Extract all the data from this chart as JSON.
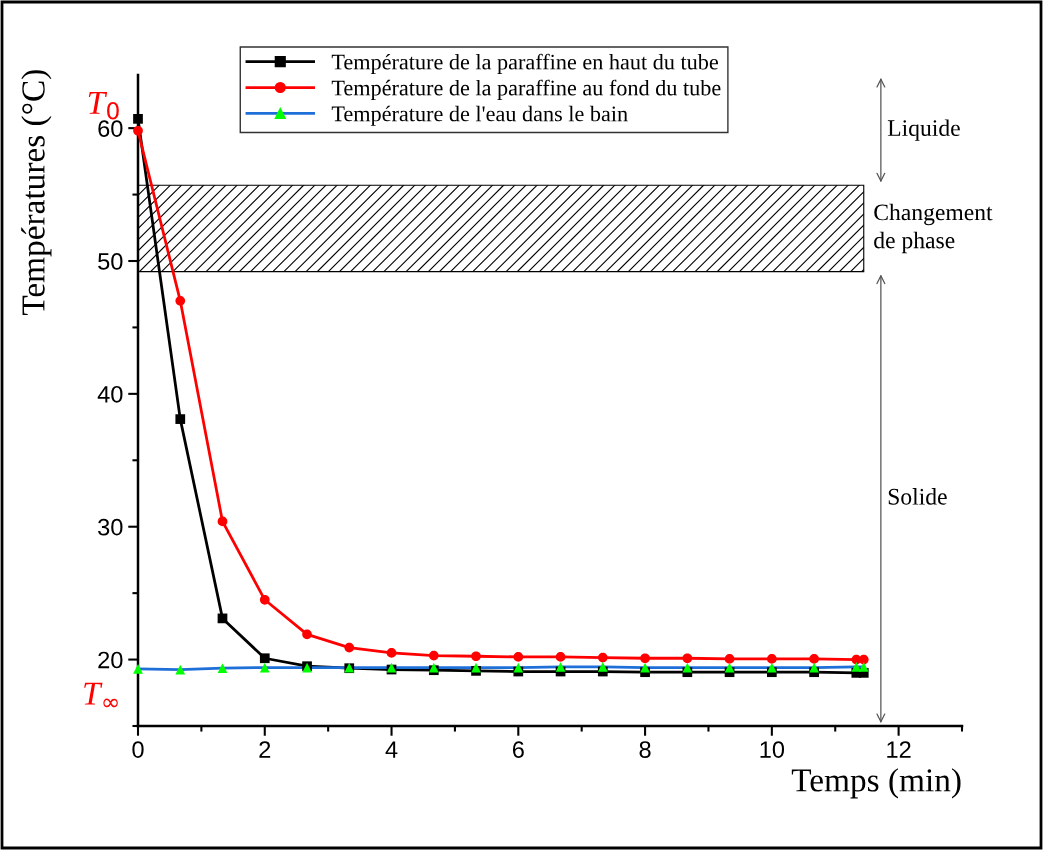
{
  "chart_data": {
    "type": "line",
    "xlabel": "Temps (min)",
    "ylabel": "Températures (°C)",
    "xlim": [
      0,
      13
    ],
    "xticks": [
      0,
      2,
      4,
      6,
      8,
      10,
      12
    ],
    "ylim": [
      15,
      64
    ],
    "yticks": [
      20,
      30,
      40,
      50,
      60
    ],
    "grid": false,
    "legend": "top",
    "series": [
      {
        "name": "Température de la paraffine en haut du tube",
        "color": "#000000",
        "marker": "square",
        "x": [
          0,
          0.667,
          1.333,
          2,
          2.667,
          3.333,
          4,
          4.667,
          5.333,
          6,
          6.667,
          7.333,
          8,
          8.667,
          9.333,
          10,
          10.667,
          11.333,
          11.45
        ],
        "values": [
          60.7,
          38.1,
          23.1,
          20.1,
          19.5,
          19.35,
          19.25,
          19.2,
          19.15,
          19.1,
          19.1,
          19.1,
          19.05,
          19.05,
          19.05,
          19.05,
          19.05,
          19.0,
          19.0
        ]
      },
      {
        "name": "Température de la paraffine au fond du tube",
        "color": "#ff0000",
        "marker": "circle",
        "x": [
          0,
          0.667,
          1.333,
          2,
          2.667,
          3.333,
          4,
          4.667,
          5.333,
          6,
          6.667,
          7.333,
          8,
          8.667,
          9.333,
          10,
          10.667,
          11.333,
          11.45
        ],
        "values": [
          59.8,
          47.0,
          30.4,
          24.5,
          21.9,
          20.9,
          20.5,
          20.3,
          20.25,
          20.2,
          20.2,
          20.15,
          20.1,
          20.1,
          20.05,
          20.05,
          20.05,
          20.0,
          20.0
        ]
      },
      {
        "name": "Température de l'eau dans le bain",
        "color": "#1f6fd8",
        "marker": "triangle",
        "colors": [
          "#00ff00",
          "#00ff00",
          "#00ff00",
          "#00ff00",
          "#00ff00",
          "#00ff00",
          "#00ff00",
          "#00ff00",
          "#00ff00",
          "#00ff00",
          "#00ff00",
          "#00ff00",
          "#00ff00",
          "#00ff00",
          "#00ff00",
          "#00ff00",
          "#00ff00",
          "#00ff00",
          "#00ff00"
        ],
        "x": [
          0,
          0.667,
          1.333,
          2,
          2.667,
          3.333,
          4,
          4.667,
          5.333,
          6,
          6.667,
          7.333,
          8,
          8.667,
          9.333,
          10,
          10.667,
          11.333,
          11.45
        ],
        "values": [
          19.3,
          19.25,
          19.35,
          19.4,
          19.4,
          19.4,
          19.4,
          19.4,
          19.4,
          19.4,
          19.45,
          19.45,
          19.4,
          19.4,
          19.4,
          19.4,
          19.4,
          19.45,
          19.45
        ]
      }
    ],
    "bands": [
      {
        "axis": "y",
        "from": 49.2,
        "to": 55.7,
        "label": "Changement de phase"
      }
    ],
    "annotations": [
      {
        "text": "T$_{0}$",
        "x": 0,
        "y": 60
      },
      {
        "text": "T$_{∞}$",
        "x": 0,
        "y": 19.3
      },
      "Liquide",
      "Solide"
    ]
  }
}
